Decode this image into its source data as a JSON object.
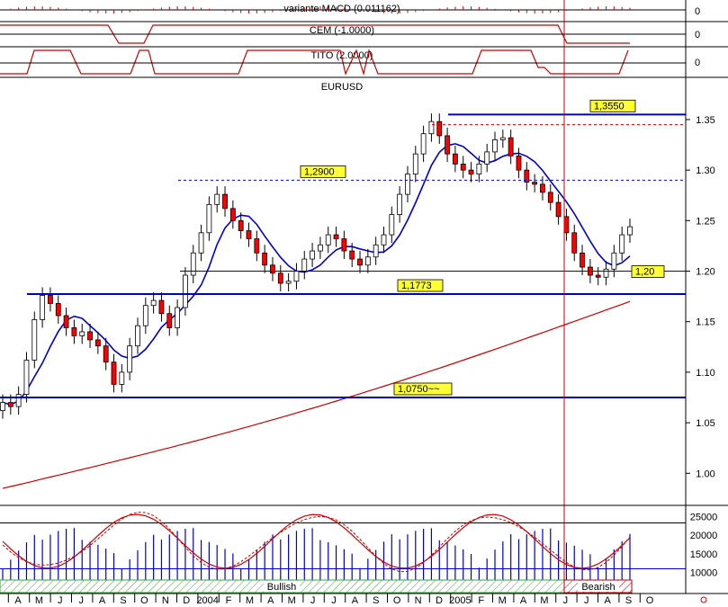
{
  "chart_data": {
    "type": "candlestick",
    "symbol": "EURUSD",
    "indicator_panels": [
      {
        "name": "variante MACD (0.011162)",
        "value": "0"
      },
      {
        "name": "CEM (-1.0000)",
        "value": "0"
      },
      {
        "name": "TITO (2.0000)",
        "value": "0"
      }
    ],
    "price_axis": {
      "ticks": [
        "1.35",
        "1.30",
        "1.25",
        "1.20",
        "1.15",
        "1.10",
        "1.05",
        "1.00"
      ],
      "ylim": [
        0.97,
        1.39
      ]
    },
    "volume_axis": {
      "ticks": [
        "25000",
        "20000",
        "15000",
        "10000"
      ]
    },
    "time_axis": [
      "A",
      "M",
      "J",
      "J",
      "A",
      "S",
      "O",
      "N",
      "D",
      "2004",
      "F",
      "M",
      "A",
      "M",
      "J",
      "J",
      "A",
      "S",
      "O",
      "N",
      "D",
      "2005",
      "F",
      "M",
      "A",
      "M",
      "J",
      "J",
      "A",
      "S",
      "O"
    ],
    "levels": [
      {
        "label": "1,3550",
        "value": 1.355
      },
      {
        "label": "1,2900",
        "value": 1.29
      },
      {
        "label": "1,20",
        "value": 1.2
      },
      {
        "label": "1,1773",
        "value": 1.1773
      },
      {
        "label": "1,0750~~",
        "value": 1.075
      }
    ],
    "closes": [
      1.07,
      1.066,
      1.078,
      1.112,
      1.152,
      1.176,
      1.168,
      1.156,
      1.144,
      1.136,
      1.14,
      1.132,
      1.126,
      1.11,
      1.088,
      1.1,
      1.126,
      1.146,
      1.166,
      1.171,
      1.158,
      1.144,
      1.164,
      1.196,
      1.218,
      1.238,
      1.266,
      1.276,
      1.262,
      1.25,
      1.24,
      1.232,
      1.218,
      1.206,
      1.198,
      1.188,
      1.19,
      1.2,
      1.212,
      1.22,
      1.226,
      1.236,
      1.232,
      1.22,
      1.212,
      1.206,
      1.214,
      1.226,
      1.236,
      1.256,
      1.276,
      1.296,
      1.316,
      1.336,
      1.348,
      1.334,
      1.316,
      1.306,
      1.3,
      1.296,
      1.306,
      1.318,
      1.33,
      1.332,
      1.314,
      1.3,
      1.288,
      1.286,
      1.278,
      1.268,
      1.254,
      1.238,
      1.218,
      1.204,
      1.196,
      1.194,
      1.202,
      1.218,
      1.236,
      1.244
    ],
    "annotations": {
      "bullish": "Bullish",
      "bearish": "Bearish"
    }
  }
}
